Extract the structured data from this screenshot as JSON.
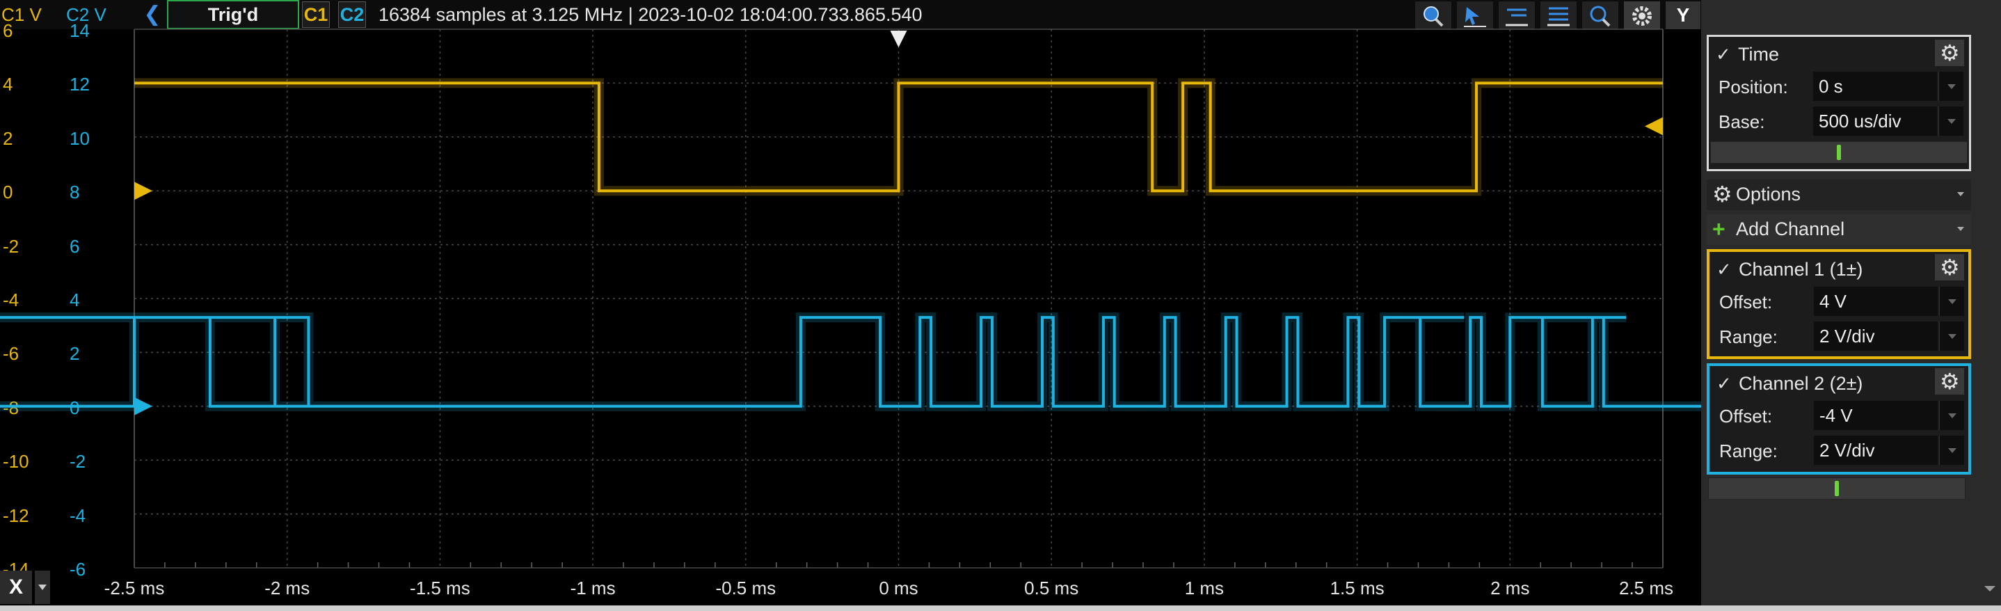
{
  "topbar": {
    "trig_label": "Trig'd",
    "c1_label": "C1",
    "c2_label": "C2",
    "info": "16384 samples at 3.125 MHz | 2023-10-02 18:04:00.733.865.540",
    "y_button": "Y"
  },
  "y_axis": {
    "c1_header": "C1 V",
    "c2_header": "C2 V",
    "c1_ticks": [
      "6",
      "4",
      "2",
      "0",
      "-2",
      "-4",
      "-6",
      "-8",
      "-10",
      "-12",
      "-14"
    ],
    "c2_ticks": [
      "14",
      "12",
      "10",
      "8",
      "6",
      "4",
      "2",
      "0",
      "-2",
      "-4",
      "-6"
    ]
  },
  "x_axis": {
    "button": "X",
    "ticks": [
      "-2.5 ms",
      "-2 ms",
      "-1.5 ms",
      "-1 ms",
      "-0.5 ms",
      "0 ms",
      "0.5 ms",
      "1 ms",
      "1.5 ms",
      "2 ms",
      "2.5 ms"
    ]
  },
  "panel": {
    "time": {
      "title": "Time",
      "position_label": "Position:",
      "position_value": "0 s",
      "base_label": "Base:",
      "base_value": "500 us/div"
    },
    "options_label": "Options",
    "add_channel_label": "Add Channel",
    "channel1": {
      "title": "Channel 1 (1±)",
      "offset_label": "Offset:",
      "offset_value": "4 V",
      "range_label": "Range:",
      "range_value": "2 V/div"
    },
    "channel2": {
      "title": "Channel 2 (2±)",
      "offset_label": "Offset:",
      "offset_value": "-4 V",
      "range_label": "Range:",
      "range_value": "2 V/div"
    }
  },
  "colors": {
    "c1": "#e8b70c",
    "c2": "#1fb2e0",
    "grid": "#555555",
    "trigger_border": "#2aa84a"
  },
  "chart_data": {
    "type": "line",
    "x_unit": "ms",
    "xlim": [
      -2.5,
      2.5
    ],
    "c1_ylim": [
      -14,
      6
    ],
    "c2_ylim": [
      -6,
      14
    ],
    "series": [
      {
        "name": "C1",
        "points": [
          [
            -2.5,
            4
          ],
          [
            -0.98,
            4
          ],
          [
            -0.98,
            0
          ],
          [
            0.0,
            0
          ],
          [
            0.0,
            4
          ],
          [
            0.83,
            4
          ],
          [
            0.83,
            0
          ],
          [
            0.93,
            0
          ],
          [
            0.93,
            4
          ],
          [
            1.02,
            4
          ],
          [
            1.02,
            0
          ],
          [
            1.89,
            0
          ],
          [
            1.89,
            4
          ],
          [
            2.5,
            4
          ]
        ]
      },
      {
        "name": "C2",
        "low": 0,
        "high": 3.3,
        "idle_high": [
          [
            -2.5,
            -2.04
          ],
          [
            -0.32,
            -0.06
          ],
          [
            1.59,
            1.85
          ]
        ],
        "pulse_groups": [
          [
            -1.93,
            -1.79,
            19,
            -0.32
          ],
          [
            0.07,
            0.2,
            12,
            1.59
          ],
          [
            2.0,
            2.11,
            4,
            2.5
          ]
        ]
      }
    ],
    "trigger_x": 0.0,
    "grid": true
  }
}
